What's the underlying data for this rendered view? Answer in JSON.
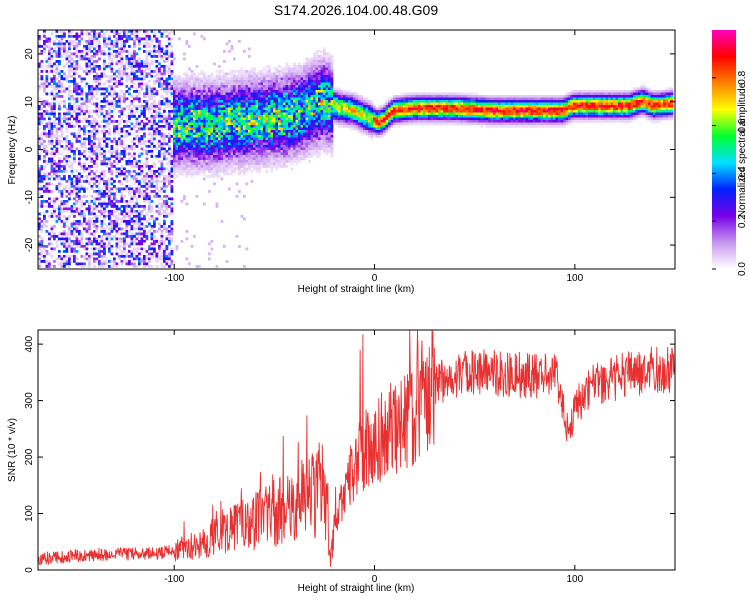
{
  "figure_title": "S174.2026.104.00.48.G09",
  "chart_data": [
    {
      "type": "heatmap",
      "xlabel": "Height of straight line (km)",
      "ylabel": "Frequency (Hz)",
      "xlim": [
        -168,
        150
      ],
      "ylim": [
        -25,
        25
      ],
      "xticks": [
        -100,
        0,
        100
      ],
      "yticks": [
        -20,
        -10,
        0,
        10,
        20
      ],
      "colorbar": {
        "label": "Normalized spectral amplitude",
        "range": [
          0,
          1
        ],
        "ticks": [
          0.0,
          0.2,
          0.4,
          0.6,
          0.8
        ],
        "colormap": [
          "#ffffff",
          "#c898f0",
          "#7800e8",
          "#0020ff",
          "#00e0ff",
          "#00ff30",
          "#ffff00",
          "#ff8000",
          "#ff0000",
          "#ff00c0"
        ]
      },
      "ridge": {
        "description_points_x": [
          -100,
          -80,
          -60,
          -40,
          -30,
          -25,
          -20,
          -10,
          0,
          2,
          5,
          10,
          20,
          40,
          60,
          80,
          95,
          100,
          120,
          128,
          135,
          140,
          150
        ],
        "frequency_hz": [
          5,
          5,
          6,
          7,
          9,
          10,
          9,
          8,
          6,
          5.5,
          6,
          8,
          8.5,
          8.5,
          8,
          8,
          8,
          9,
          9,
          9,
          10,
          9,
          9.5
        ]
      },
      "noise_region_x": [
        -168,
        -100
      ]
    },
    {
      "type": "line",
      "xlabel": "Height of straight line (km)",
      "ylabel": "SNR (10 * v/v)",
      "xlim": [
        -168,
        150
      ],
      "ylim": [
        0,
        425
      ],
      "xticks": [
        -100,
        0,
        100
      ],
      "yticks": [
        0,
        100,
        200,
        300,
        400
      ],
      "color": "#e83030",
      "series": [
        {
          "name": "SNR",
          "x": [
            -168,
            -150,
            -130,
            -110,
            -100,
            -90,
            -80,
            -70,
            -60,
            -50,
            -45,
            -40,
            -35,
            -30,
            -25,
            -22,
            -20,
            -18,
            -15,
            -10,
            -5,
            0,
            5,
            10,
            15,
            20,
            25,
            30,
            40,
            50,
            60,
            70,
            80,
            90,
            93,
            95,
            97,
            100,
            105,
            110,
            120,
            130,
            140,
            150
          ],
          "values": [
            20,
            25,
            28,
            30,
            35,
            45,
            60,
            75,
            85,
            100,
            110,
            120,
            130,
            140,
            150,
            10,
            80,
            100,
            140,
            190,
            210,
            220,
            240,
            250,
            260,
            290,
            310,
            330,
            345,
            350,
            350,
            345,
            345,
            345,
            310,
            270,
            240,
            290,
            310,
            330,
            340,
            350,
            355,
            355
          ]
        }
      ]
    }
  ]
}
